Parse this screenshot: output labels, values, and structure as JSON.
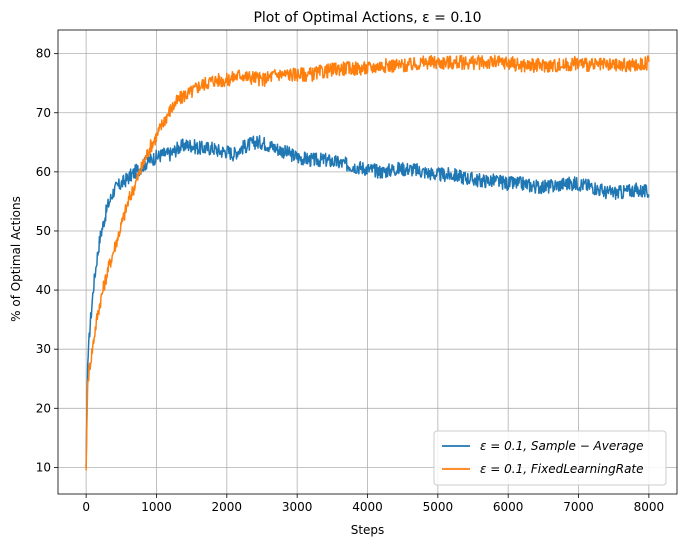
{
  "chart_data": {
    "type": "line",
    "title": "Plot of Optimal Actions, ε = 0.10",
    "xlabel": "Steps",
    "ylabel": "% of Optimal Actions",
    "xlim": [
      -400,
      8400
    ],
    "ylim": [
      5.5,
      84
    ],
    "x_ticks": [
      0,
      1000,
      2000,
      3000,
      4000,
      5000,
      6000,
      7000,
      8000
    ],
    "y_ticks": [
      10,
      20,
      30,
      40,
      50,
      60,
      70,
      80
    ],
    "grid": true,
    "legend_position": "lower-right",
    "series": [
      {
        "name": "ε = 0.1, Sample − Average",
        "color": "#1f77b4",
        "x": [
          0,
          20,
          50,
          100,
          150,
          200,
          300,
          400,
          500,
          600,
          700,
          800,
          900,
          1000,
          1100,
          1200,
          1300,
          1400,
          1500,
          1600,
          1700,
          1800,
          1900,
          2000,
          2100,
          2200,
          2300,
          2400,
          2500,
          2600,
          2700,
          2800,
          2900,
          3000,
          3200,
          3400,
          3600,
          3800,
          4000,
          4200,
          4400,
          4600,
          4800,
          5000,
          5200,
          5400,
          5600,
          5800,
          6000,
          6200,
          6400,
          6600,
          6800,
          7000,
          7200,
          7400,
          7600,
          7800,
          8000
        ],
        "y": [
          10,
          27,
          33,
          40,
          45,
          49,
          54,
          57,
          58,
          59,
          60,
          61,
          62,
          62.5,
          63,
          63,
          64,
          64.5,
          64.5,
          64,
          64,
          64,
          63.5,
          63.5,
          63,
          64,
          64.5,
          65,
          65,
          64.5,
          64,
          63.5,
          63,
          62.5,
          62,
          62,
          61.5,
          61,
          60.5,
          60,
          60.5,
          60.5,
          60,
          59.5,
          59.5,
          59,
          58.5,
          58.5,
          58,
          58,
          57.5,
          57.5,
          58,
          58,
          57.5,
          56.5,
          56.5,
          57,
          56.5
        ]
      },
      {
        "name": "ε = 0.1, FixedLearningRate",
        "color": "#ff7f0e",
        "x": [
          0,
          20,
          50,
          100,
          150,
          200,
          300,
          400,
          500,
          600,
          700,
          800,
          900,
          1000,
          1100,
          1200,
          1300,
          1400,
          1500,
          1600,
          1700,
          1800,
          1900,
          2000,
          2100,
          2200,
          2300,
          2400,
          2500,
          2600,
          2700,
          2800,
          2900,
          3000,
          3200,
          3400,
          3600,
          3800,
          4000,
          4200,
          4400,
          4600,
          4800,
          5000,
          5200,
          5400,
          5600,
          5800,
          6000,
          6200,
          6400,
          6600,
          6800,
          7000,
          7200,
          7400,
          7600,
          7800,
          8000
        ],
        "y": [
          9.5,
          24,
          27,
          31,
          35,
          38,
          43,
          47,
          51,
          55,
          58,
          61,
          64,
          66,
          68.5,
          70.5,
          72,
          73,
          73.5,
          74.5,
          75,
          75.5,
          75.5,
          75.5,
          76,
          76.5,
          76,
          76,
          75.5,
          76,
          76.5,
          76.5,
          76.5,
          76.5,
          76.5,
          77,
          77.5,
          77.5,
          77.5,
          78,
          78,
          78,
          78.5,
          78.5,
          78.5,
          78.5,
          78.5,
          78.5,
          78.5,
          78,
          78,
          78,
          78,
          78.5,
          78,
          78,
          78,
          78,
          78.5
        ]
      }
    ]
  }
}
